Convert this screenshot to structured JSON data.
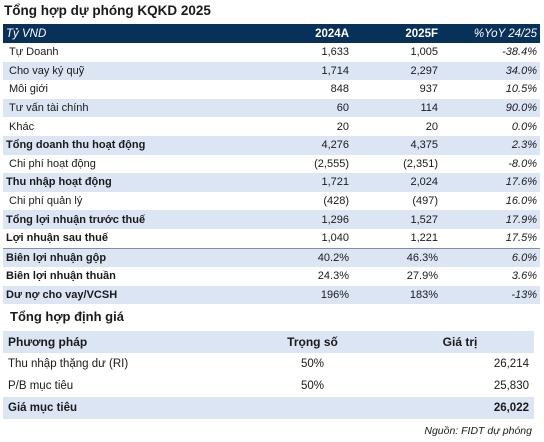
{
  "title": "Tổng hợp dự phóng KQKD 2025",
  "forecast": {
    "headers": [
      "Tỷ VND",
      "2024A",
      "2025F",
      "%YoY 24/25"
    ],
    "rows": [
      {
        "label": "Tự Doanh",
        "a": "1,633",
        "f": "1,005",
        "yoy": "-38.4%",
        "bold": false,
        "band": false
      },
      {
        "label": "Cho vay ký quỹ",
        "a": "1,714",
        "f": "2,297",
        "yoy": "34.0%",
        "bold": false,
        "band": true
      },
      {
        "label": "Môi giới",
        "a": "848",
        "f": "937",
        "yoy": "10.5%",
        "bold": false,
        "band": false
      },
      {
        "label": "Tư vấn tài chính",
        "a": "60",
        "f": "114",
        "yoy": "90.0%",
        "bold": false,
        "band": true
      },
      {
        "label": "Khác",
        "a": "20",
        "f": "20",
        "yoy": "0.0%",
        "bold": false,
        "band": false
      },
      {
        "label": "Tổng doanh thu hoạt động",
        "a": "4,276",
        "f": "4,375",
        "yoy": "2.3%",
        "bold": true,
        "band": true
      },
      {
        "label": "Chi phí hoạt động",
        "a": "(2,555)",
        "f": "(2,351)",
        "yoy": "-8.0%",
        "bold": false,
        "band": false
      },
      {
        "label": "Thu nhập hoạt động",
        "a": "1,721",
        "f": "2,024",
        "yoy": "17.6%",
        "bold": true,
        "band": true
      },
      {
        "label": "Chi phí quản lý",
        "a": "(428)",
        "f": "(497)",
        "yoy": "16.0%",
        "bold": false,
        "band": false
      },
      {
        "label": "Tổng lợi nhuận trước thuế",
        "a": "1,296",
        "f": "1,527",
        "yoy": "17.9%",
        "bold": true,
        "band": true
      },
      {
        "label": "Lợi nhuận sau thuế",
        "a": "1,040",
        "f": "1,221",
        "yoy": "17.5%",
        "bold": true,
        "band": false
      },
      {
        "label": "Biên lợi nhuận gộp",
        "a": "40.2%",
        "f": "46.3%",
        "yoy": "6.0%",
        "bold": true,
        "band": true
      },
      {
        "label": "Biên lợi nhuận thuần",
        "a": "24.3%",
        "f": "27.9%",
        "yoy": "3.6%",
        "bold": true,
        "band": false
      },
      {
        "label": "Dư nợ cho vay/VCSH",
        "a": "196%",
        "f": "183%",
        "yoy": "-13%",
        "bold": true,
        "band": true
      }
    ]
  },
  "valuation": {
    "title": "Tổng hợp định giá",
    "headers": [
      "Phương pháp",
      "Trọng số",
      "Giá trị"
    ],
    "rows": [
      {
        "method": "Thu nhập thặng dư (RI)",
        "weight": "50%",
        "value": "26,214"
      },
      {
        "method": "P/B mục tiêu",
        "weight": "50%",
        "value": "25,830"
      }
    ],
    "total_label": "Giá mục tiêu",
    "total_value": "26,022"
  },
  "source": "Nguồn: FIDT dự phóng"
}
